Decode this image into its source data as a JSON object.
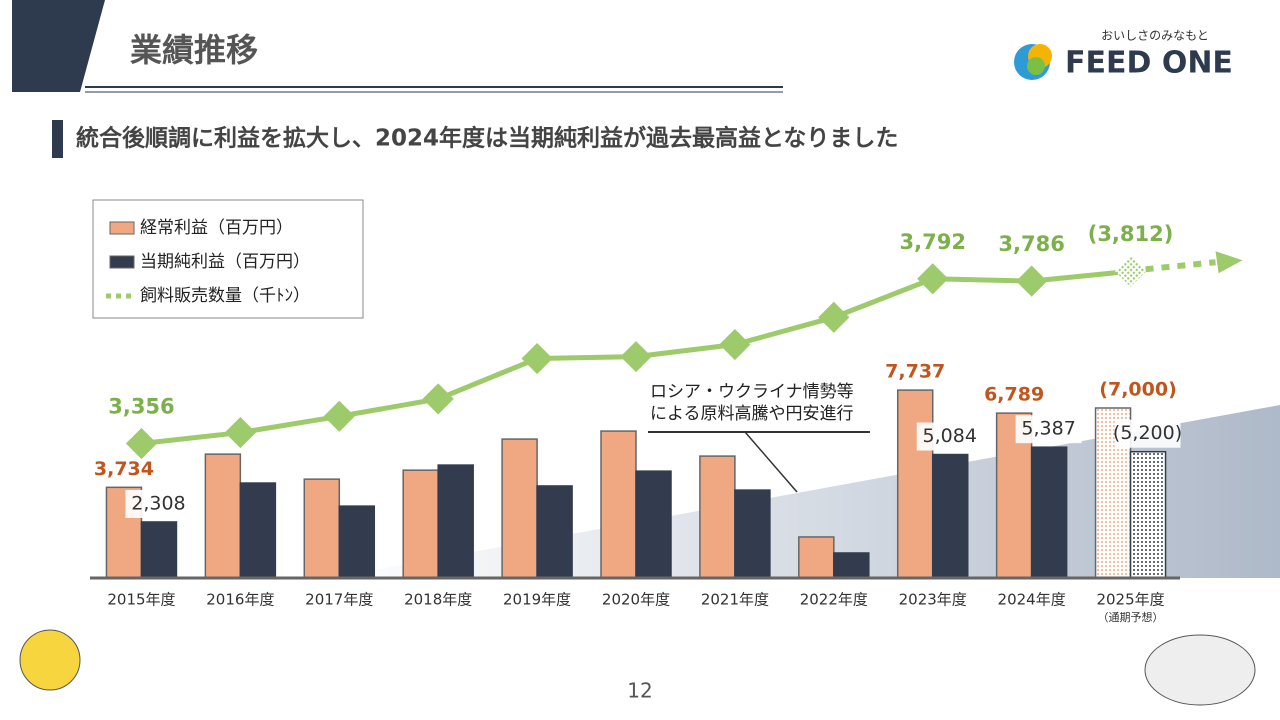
{
  "header": {
    "title": "業績推移",
    "logo_tagline": "おいしさのみなもと",
    "logo_name": "FEED ONE"
  },
  "subtitle": "統合後順調に利益を拡大し、2024年度は当期純利益が過去最高益となりました",
  "page_number": "12",
  "chart_data": {
    "type": "bar",
    "categories": [
      "2015年度",
      "2016年度",
      "2017年度",
      "2018年度",
      "2019年度",
      "2020年度",
      "2021年度",
      "2022年度",
      "2023年度",
      "2024年度",
      "2025年度"
    ],
    "forecast_note": "（通期予想）",
    "forecast_index": 10,
    "annotation": [
      "ロシア・ウクライナ情勢等",
      "による原料高騰や円安進行"
    ],
    "legend": "upper left",
    "ylim": [
      0,
      14000
    ],
    "y2lim": [
      3000,
      3900
    ],
    "series": [
      {
        "name": "経常利益（百万円）",
        "type": "bar",
        "color": "#f0a882",
        "label_color": "#c0561e",
        "values": [
          3734,
          5100,
          4070,
          4440,
          5720,
          6050,
          5020,
          1690,
          7737,
          6789,
          7000
        ],
        "value_labels": [
          "3,734",
          null,
          null,
          null,
          null,
          null,
          null,
          null,
          "7,737",
          "6,789",
          "(7,000)"
        ]
      },
      {
        "name": "当期純利益（百万円）",
        "type": "bar",
        "color": "#333c4e",
        "label_color": "#333c4e",
        "values": [
          2308,
          3910,
          2960,
          4650,
          3790,
          4400,
          3620,
          1030,
          5084,
          5387,
          5200
        ],
        "value_labels": [
          "2,308",
          null,
          null,
          null,
          null,
          null,
          null,
          null,
          "5,084",
          "5,387",
          "(5,200)"
        ]
      },
      {
        "name": "飼料販売数量（千ﾄﾝ）",
        "type": "line",
        "axis": "y2",
        "color": "#9dcb6b",
        "label_color": "#7bb04a",
        "values": [
          3356,
          3385,
          3428,
          3474,
          3581,
          3586,
          3618,
          3690,
          3792,
          3786,
          3812
        ],
        "value_labels": [
          "3,356",
          null,
          null,
          null,
          null,
          null,
          null,
          null,
          "3,792",
          "3,786",
          "(3,812)"
        ]
      }
    ]
  }
}
